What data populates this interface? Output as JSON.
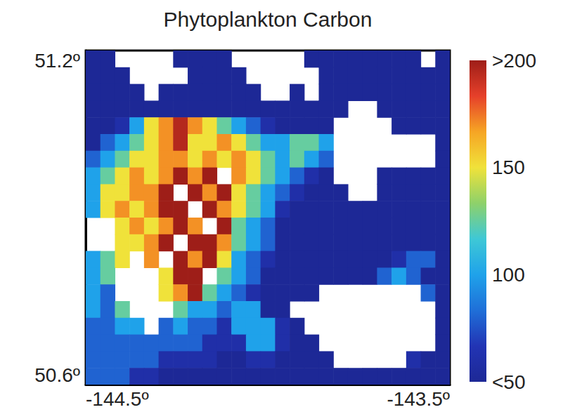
{
  "chart_data": {
    "type": "heatmap",
    "title": "Phytoplankton Carbon",
    "x": [
      -144.48,
      -144.44,
      -144.4,
      -144.36,
      -144.32,
      -144.28,
      -144.24,
      -144.2,
      -144.16,
      -144.12,
      -144.08,
      -144.04,
      -144.0,
      -143.96,
      -143.92,
      -143.88,
      -143.84,
      -143.8,
      -143.76,
      -143.72,
      -143.68,
      -143.64,
      -143.6,
      -143.56,
      -143.52
    ],
    "y": [
      51.185,
      51.155,
      51.125,
      51.095,
      51.065,
      51.035,
      51.005,
      50.975,
      50.945,
      50.915,
      50.885,
      50.855,
      50.825,
      50.795,
      50.765,
      50.735,
      50.705,
      50.675,
      50.645,
      50.615
    ],
    "cells": [
      [
        40,
        40,
        null,
        null,
        null,
        null,
        40,
        40,
        40,
        40,
        null,
        null,
        null,
        null,
        null,
        40,
        40,
        40,
        40,
        40,
        40,
        40,
        40,
        null,
        40
      ],
      [
        40,
        40,
        40,
        null,
        null,
        null,
        null,
        40,
        40,
        40,
        40,
        null,
        null,
        null,
        null,
        null,
        40,
        40,
        40,
        40,
        40,
        40,
        40,
        40,
        40
      ],
      [
        40,
        40,
        40,
        40,
        null,
        40,
        40,
        40,
        40,
        40,
        40,
        40,
        null,
        null,
        40,
        null,
        40,
        40,
        40,
        40,
        40,
        40,
        40,
        40,
        40
      ],
      [
        40,
        40,
        40,
        40,
        40,
        40,
        40,
        40,
        40,
        40,
        40,
        40,
        40,
        40,
        40,
        40,
        40,
        40,
        null,
        null,
        40,
        40,
        40,
        40,
        40
      ],
      [
        40,
        40,
        60,
        100,
        150,
        170,
        195,
        170,
        150,
        125,
        100,
        80,
        60,
        40,
        40,
        40,
        40,
        null,
        null,
        null,
        null,
        40,
        40,
        40,
        40
      ],
      [
        40,
        80,
        100,
        125,
        150,
        170,
        195,
        150,
        150,
        170,
        150,
        125,
        100,
        100,
        125,
        125,
        100,
        null,
        null,
        null,
        null,
        null,
        null,
        null,
        40
      ],
      [
        80,
        100,
        125,
        150,
        150,
        170,
        170,
        150,
        170,
        150,
        170,
        150,
        125,
        100,
        125,
        100,
        80,
        null,
        null,
        null,
        null,
        null,
        null,
        null,
        40
      ],
      [
        100,
        125,
        150,
        170,
        150,
        170,
        215,
        170,
        215,
        null,
        170,
        150,
        125,
        100,
        80,
        60,
        40,
        null,
        null,
        null,
        40,
        40,
        40,
        40,
        40
      ],
      [
        100,
        150,
        150,
        170,
        170,
        215,
        null,
        215,
        170,
        215,
        150,
        125,
        100,
        80,
        60,
        40,
        40,
        40,
        null,
        null,
        40,
        40,
        40,
        40,
        40
      ],
      [
        100,
        150,
        170,
        150,
        170,
        215,
        215,
        null,
        215,
        170,
        150,
        125,
        100,
        60,
        40,
        40,
        40,
        40,
        40,
        40,
        40,
        40,
        40,
        40,
        40
      ],
      [
        null,
        null,
        150,
        170,
        150,
        170,
        215,
        170,
        null,
        215,
        125,
        100,
        80,
        40,
        40,
        40,
        40,
        40,
        40,
        40,
        40,
        40,
        40,
        40,
        40
      ],
      [
        null,
        null,
        150,
        150,
        170,
        215,
        null,
        215,
        215,
        170,
        125,
        100,
        80,
        40,
        40,
        40,
        40,
        40,
        40,
        40,
        40,
        40,
        40,
        40,
        40
      ],
      [
        100,
        125,
        150,
        null,
        170,
        null,
        215,
        170,
        215,
        150,
        100,
        80,
        60,
        40,
        40,
        40,
        40,
        40,
        40,
        40,
        40,
        60,
        80,
        80,
        40
      ],
      [
        100,
        125,
        null,
        null,
        null,
        150,
        215,
        215,
        null,
        125,
        100,
        80,
        40,
        40,
        40,
        40,
        40,
        40,
        40,
        40,
        80,
        100,
        80,
        40,
        40
      ],
      [
        100,
        80,
        null,
        null,
        null,
        150,
        170,
        215,
        125,
        100,
        80,
        60,
        40,
        40,
        40,
        40,
        null,
        null,
        null,
        null,
        null,
        null,
        null,
        80,
        40
      ],
      [
        100,
        80,
        125,
        null,
        null,
        null,
        125,
        100,
        100,
        80,
        100,
        100,
        40,
        40,
        null,
        null,
        null,
        null,
        null,
        null,
        null,
        null,
        null,
        null,
        40
      ],
      [
        80,
        80,
        100,
        100,
        null,
        80,
        100,
        80,
        80,
        60,
        100,
        100,
        100,
        60,
        40,
        null,
        null,
        null,
        null,
        null,
        null,
        null,
        null,
        null,
        40
      ],
      [
        80,
        80,
        80,
        80,
        80,
        80,
        80,
        80,
        60,
        60,
        60,
        100,
        100,
        60,
        40,
        40,
        null,
        null,
        null,
        null,
        null,
        null,
        null,
        null,
        40
      ],
      [
        80,
        80,
        80,
        80,
        80,
        60,
        60,
        60,
        60,
        40,
        40,
        60,
        60,
        40,
        40,
        40,
        40,
        null,
        null,
        null,
        null,
        null,
        60,
        40,
        40
      ],
      [
        80,
        80,
        80,
        60,
        60,
        40,
        40,
        40,
        40,
        40,
        40,
        40,
        40,
        40,
        40,
        40,
        40,
        40,
        40,
        40,
        40,
        40,
        40,
        40,
        40
      ]
    ],
    "xlim": [
      -144.5,
      -143.5
    ],
    "xticks": [
      {
        "value": -144.5,
        "label": "-144.5º"
      },
      {
        "value": -143.5,
        "label": "-143.5º"
      }
    ],
    "ylim": [
      50.6,
      51.2
    ],
    "yticks": [
      {
        "value": 50.6,
        "label": "50.6º"
      },
      {
        "value": 51.2,
        "label": "51.2º"
      }
    ],
    "colorbar": {
      "range": [
        50,
        200
      ],
      "ticks": [
        {
          "value": 50,
          "label": "<50"
        },
        100,
        150,
        {
          "value": 200,
          "label": ">200"
        }
      ]
    },
    "grid": false
  }
}
